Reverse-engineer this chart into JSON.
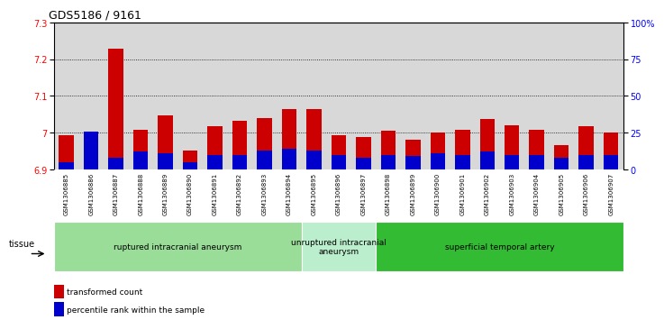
{
  "title": "GDS5186 / 9161",
  "samples": [
    "GSM1306885",
    "GSM1306886",
    "GSM1306887",
    "GSM1306888",
    "GSM1306889",
    "GSM1306890",
    "GSM1306891",
    "GSM1306892",
    "GSM1306893",
    "GSM1306894",
    "GSM1306895",
    "GSM1306896",
    "GSM1306897",
    "GSM1306898",
    "GSM1306899",
    "GSM1306900",
    "GSM1306901",
    "GSM1306902",
    "GSM1306903",
    "GSM1306904",
    "GSM1306905",
    "GSM1306906",
    "GSM1306907"
  ],
  "red_values": [
    6.994,
    7.001,
    7.227,
    7.007,
    7.047,
    6.951,
    7.017,
    7.032,
    7.04,
    7.065,
    7.065,
    6.993,
    6.988,
    7.005,
    6.98,
    7.001,
    7.008,
    7.038,
    7.021,
    7.007,
    6.966,
    7.017,
    7.001
  ],
  "blue_values": [
    5,
    26,
    8,
    12,
    11,
    5,
    10,
    10,
    13,
    14,
    13,
    10,
    8,
    10,
    9,
    11,
    10,
    12,
    10,
    10,
    8,
    10,
    10
  ],
  "ylim_left": [
    6.9,
    7.3
  ],
  "ylim_right": [
    0,
    100
  ],
  "yticks_left": [
    6.9,
    7.0,
    7.1,
    7.2,
    7.3
  ],
  "ytick_labels_left": [
    "6.9",
    "7",
    "7.1",
    "7.2",
    "7.3"
  ],
  "yticks_right": [
    0,
    25,
    50,
    75,
    100
  ],
  "ytick_labels_right": [
    "0",
    "25",
    "50",
    "75",
    "100%"
  ],
  "bar_bottom": 6.9,
  "groups": [
    {
      "label": "ruptured intracranial aneurysm",
      "start": 0,
      "end": 9,
      "color": "#aaeaaa"
    },
    {
      "label": "unruptured intracranial\naneurysm",
      "start": 9,
      "end": 12,
      "color": "#ccf5cc"
    },
    {
      "label": "superficial temporal artery",
      "start": 12,
      "end": 22,
      "color": "#44cc44"
    }
  ],
  "tissue_label": "tissue",
  "legend_red": "transformed count",
  "legend_blue": "percentile rank within the sample",
  "red_color": "#cc0000",
  "blue_color": "#0000cc",
  "bar_width": 0.6,
  "plot_bg": "#d8d8d8",
  "label_bg": "#d8d8d8"
}
